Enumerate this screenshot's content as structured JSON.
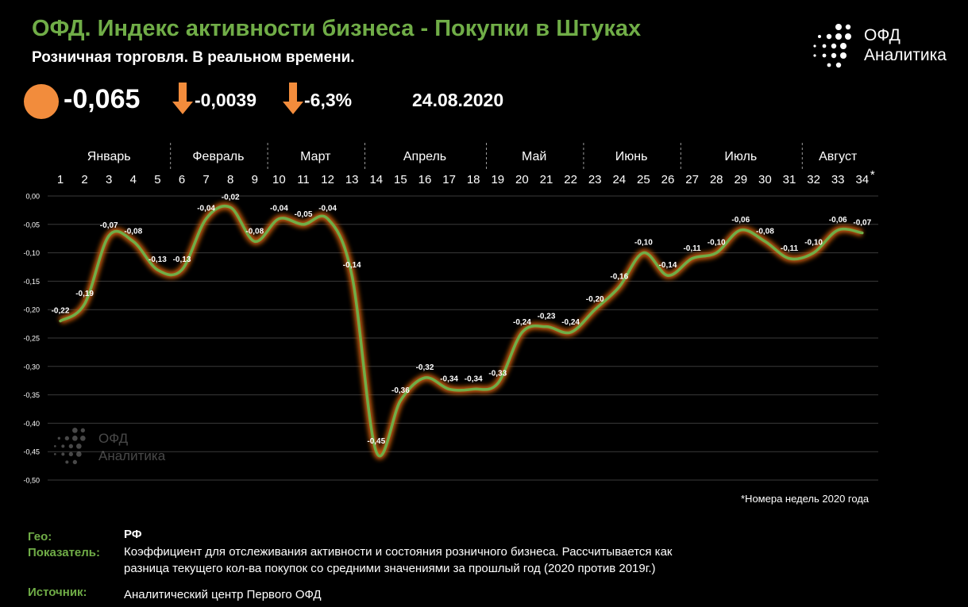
{
  "header": {
    "title": "ОФД. Индекс активности бизнеса - Покупки в Штуках",
    "subtitle": "Розничная торговля. В реальном времени."
  },
  "logo": {
    "line1": "ОФД",
    "line2": "Аналитика"
  },
  "kpi": {
    "main_value": "-0,065",
    "change_abs": "-0,0039",
    "change_pct": "-6,3%",
    "date": "24.08.2020",
    "indicator_color": "#f28c3c",
    "arrow_color": "#f28c3c"
  },
  "chart_data": {
    "type": "line",
    "months": [
      {
        "name": "Январь",
        "weeks": [
          1,
          5
        ]
      },
      {
        "name": "Февраль",
        "weeks": [
          6,
          9
        ]
      },
      {
        "name": "Март",
        "weeks": [
          10,
          13
        ]
      },
      {
        "name": "Апрель",
        "weeks": [
          14,
          18
        ]
      },
      {
        "name": "Май",
        "weeks": [
          19,
          22
        ]
      },
      {
        "name": "Июнь",
        "weeks": [
          23,
          26
        ]
      },
      {
        "name": "Июль",
        "weeks": [
          27,
          31
        ]
      },
      {
        "name": "Август",
        "weeks": [
          32,
          34
        ]
      }
    ],
    "x": [
      1,
      2,
      3,
      4,
      5,
      6,
      7,
      8,
      9,
      10,
      11,
      12,
      13,
      14,
      15,
      16,
      17,
      18,
      19,
      20,
      21,
      22,
      23,
      24,
      25,
      26,
      27,
      28,
      29,
      30,
      31,
      32,
      33,
      34
    ],
    "x_last_suffix": "*",
    "y": [
      -0.22,
      -0.19,
      -0.07,
      -0.08,
      -0.13,
      -0.13,
      -0.04,
      -0.02,
      -0.08,
      -0.04,
      -0.05,
      -0.04,
      -0.14,
      -0.45,
      -0.36,
      -0.32,
      -0.34,
      -0.34,
      -0.33,
      -0.24,
      -0.23,
      -0.24,
      -0.2,
      -0.16,
      -0.1,
      -0.14,
      -0.11,
      -0.1,
      -0.06,
      -0.08,
      -0.11,
      -0.1,
      -0.06,
      -0.065
    ],
    "labels": [
      "-0,22",
      "-0,19",
      "-0,07",
      "-0,08",
      "-0,13",
      "-0,13",
      "-0,04",
      "-0,02",
      "-0,08",
      "-0,04",
      "-0,05",
      "-0,04",
      "-0,14",
      "-0,45",
      "-0,36",
      "-0,32",
      "-0,34",
      "-0,34",
      "-0,33",
      "-0,24",
      "-0,23",
      "-0,24",
      "-0,20",
      "-0,16",
      "-0,10",
      "-0,14",
      "-0,11",
      "-0,10",
      "-0,06",
      "-0,08",
      "-0,11",
      "-0,10",
      "-0,06",
      "-0,07"
    ],
    "ylim": [
      -0.5,
      0.0
    ],
    "yticks": [
      0.0,
      -0.05,
      -0.1,
      -0.15,
      -0.2,
      -0.25,
      -0.3,
      -0.35,
      -0.4,
      -0.45,
      -0.5
    ],
    "ytick_labels": [
      "0,00",
      "-0,05",
      "-0,10",
      "-0,15",
      "-0,20",
      "-0,25",
      "-0,30",
      "-0,35",
      "-0,40",
      "-0,45",
      "-0,50"
    ],
    "grid": true,
    "line_color": "#70ad47",
    "glow_color": "#c55a11"
  },
  "footnote": "*Номера недель 2020 года",
  "info": {
    "geo_label": "Гео:",
    "geo_value": "РФ",
    "indicator_label": "Показатель:",
    "indicator_value_1": "Коэффициент для отслеживания активности и состояния розничного бизнеса. Рассчитывается как",
    "indicator_value_2": "разница текущего кол-ва покупок со средними значениями за прошлый год (2020 против 2019г.)",
    "source_label": "Источник:",
    "source_value": "Аналитический центр  Первого ОФД"
  },
  "watermark": {
    "line1": "ОФД",
    "line2": "Аналитика"
  }
}
